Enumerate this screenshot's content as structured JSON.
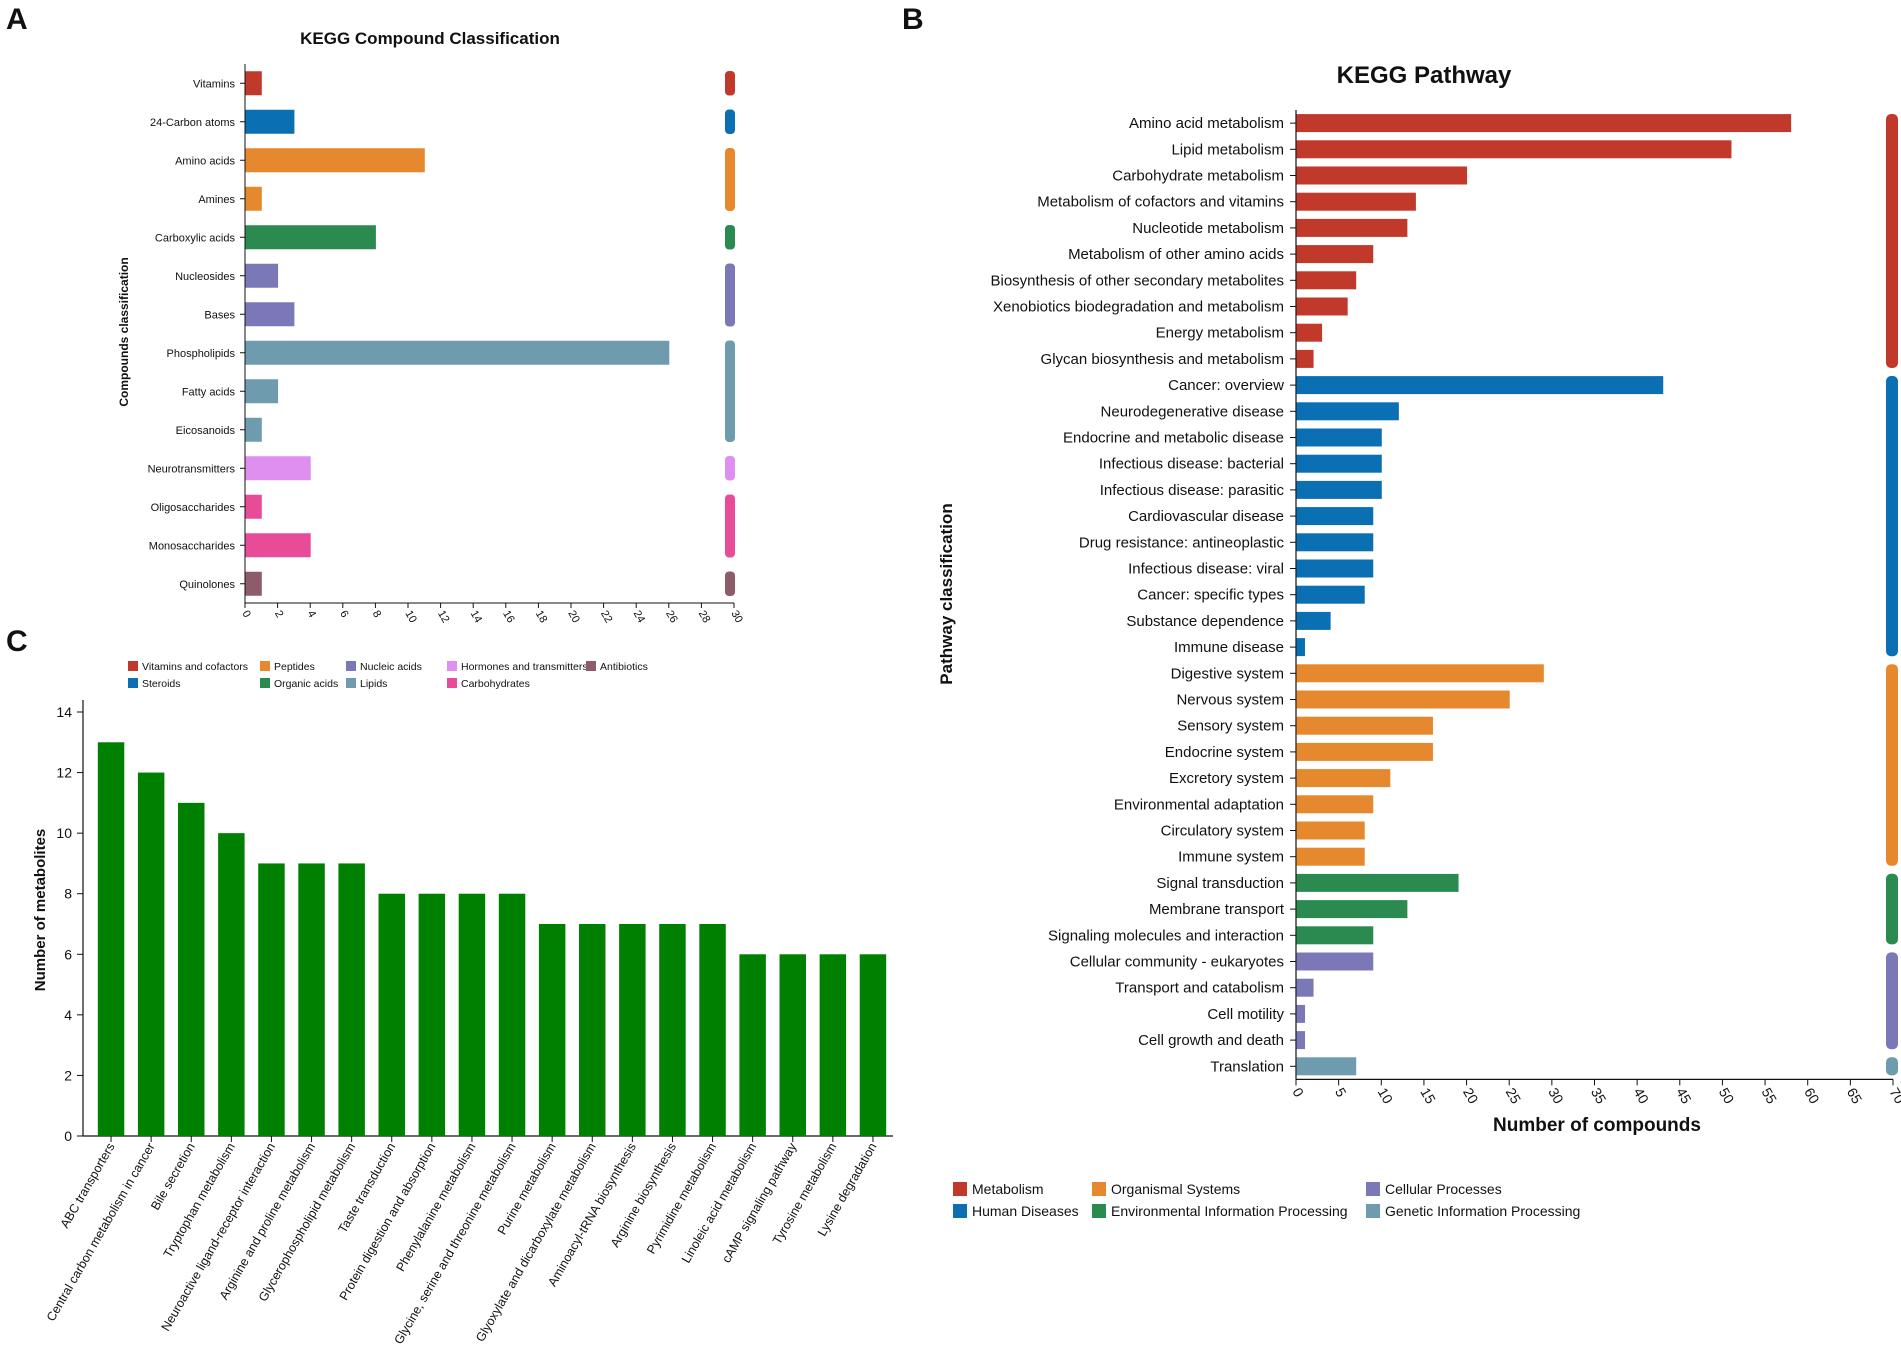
{
  "chart_data": [
    {
      "panel": "A",
      "type": "bar",
      "orientation": "horizontal",
      "title": "KEGG Compound Classification",
      "xlabel": "",
      "ylabel": "Compounds classification",
      "xlim": [
        0,
        30
      ],
      "xticks": [
        0,
        2,
        4,
        6,
        8,
        10,
        12,
        14,
        16,
        18,
        20,
        22,
        24,
        26,
        28,
        30
      ],
      "categories": [
        "Vitamins",
        "24-Carbon atoms",
        "Amino acids",
        "Amines",
        "Carboxylic acids",
        "Nucleosides",
        "Bases",
        "Phospholipids",
        "Fatty acids",
        "Eicosanoids",
        "Neurotransmitters",
        "Oligosaccharides",
        "Monosaccharides",
        "Quinolones"
      ],
      "values": [
        1,
        3,
        11,
        1,
        8,
        2,
        3,
        26,
        2,
        1,
        4,
        1,
        4,
        1
      ],
      "groups": [
        "Vitamins and cofactors",
        "Steroids",
        "Peptides",
        "Peptides",
        "Organic acids",
        "Nucleic acids",
        "Nucleic acids",
        "Lipids",
        "Lipids",
        "Lipids",
        "Hormones and transmitters",
        "Carbohydrates",
        "Carbohydrates",
        "Antibiotics"
      ],
      "grid": false
    },
    {
      "panel": "B",
      "type": "bar",
      "orientation": "horizontal",
      "title": "KEGG Pathway",
      "xlabel": "Number of compounds",
      "ylabel": "Pathway classification",
      "xlim": [
        0,
        70
      ],
      "xticks": [
        0,
        5,
        10,
        15,
        20,
        25,
        30,
        35,
        40,
        45,
        50,
        55,
        60,
        65,
        70
      ],
      "categories": [
        "Amino acid metabolism",
        "Lipid metabolism",
        "Carbohydrate metabolism",
        "Metabolism of cofactors and vitamins",
        "Nucleotide metabolism",
        "Metabolism of other amino acids",
        "Biosynthesis of other secondary metabolites",
        "Xenobiotics biodegradation and metabolism",
        "Energy metabolism",
        "Glycan biosynthesis and metabolism",
        "Cancer: overview",
        "Neurodegenerative disease",
        "Endocrine and metabolic disease",
        "Infectious disease: bacterial",
        "Infectious disease: parasitic",
        "Cardiovascular disease",
        "Drug resistance: antineoplastic",
        "Infectious disease: viral",
        "Cancer: specific types",
        "Substance dependence",
        "Immune disease",
        "Digestive system",
        "Nervous system",
        "Sensory system",
        "Endocrine system",
        "Excretory system",
        "Environmental adaptation",
        "Circulatory system",
        "Immune system",
        "Signal transduction",
        "Membrane transport",
        "Signaling molecules and interaction",
        "Cellular community - eukaryotes",
        "Transport and catabolism",
        "Cell motility",
        "Cell growth and death",
        "Translation"
      ],
      "values": [
        58,
        51,
        20,
        14,
        13,
        9,
        7,
        6,
        3,
        2,
        43,
        12,
        10,
        10,
        10,
        9,
        9,
        9,
        8,
        4,
        1,
        29,
        25,
        16,
        16,
        11,
        9,
        8,
        8,
        19,
        13,
        9,
        9,
        2,
        1,
        1,
        7
      ],
      "groups": [
        "Metabolism",
        "Metabolism",
        "Metabolism",
        "Metabolism",
        "Metabolism",
        "Metabolism",
        "Metabolism",
        "Metabolism",
        "Metabolism",
        "Metabolism",
        "Human Diseases",
        "Human Diseases",
        "Human Diseases",
        "Human Diseases",
        "Human Diseases",
        "Human Diseases",
        "Human Diseases",
        "Human Diseases",
        "Human Diseases",
        "Human Diseases",
        "Human Diseases",
        "Organismal Systems",
        "Organismal Systems",
        "Organismal Systems",
        "Organismal Systems",
        "Organismal Systems",
        "Organismal Systems",
        "Organismal Systems",
        "Organismal Systems",
        "Environmental Information Processing",
        "Environmental Information Processing",
        "Environmental Information Processing",
        "Cellular Processes",
        "Cellular Processes",
        "Cellular Processes",
        "Cellular Processes",
        "Genetic Information Processing"
      ],
      "legend": [
        "Metabolism",
        "Organismal Systems",
        "Cellular Processes",
        "Human Diseases",
        "Environmental Information Processing",
        "Genetic Information Processing"
      ],
      "legend_placement": "bottom",
      "grid": false
    },
    {
      "panel": "C",
      "type": "bar",
      "orientation": "vertical",
      "title": "",
      "xlabel": "",
      "ylabel": "Number of metabolites",
      "ylim": [
        0,
        14
      ],
      "yticks": [
        0,
        2,
        4,
        6,
        8,
        10,
        12,
        14
      ],
      "categories": [
        "ABC transporters",
        "Central carbon metabolism in cancer",
        "Bile secretion",
        "Tryptophan metabolism",
        "Neuroactive ligand-receptor interaction",
        "Arginine and proline metabolism",
        "Glycerophospholipid metabolism",
        "Taste transduction",
        "Protein digestion and absorption",
        "Phenylalanine metabolism",
        "Glycine, serine and threonine metabolism",
        "Purine metabolism",
        "Glyoxylate and dicarboxylate metabolism",
        "Aminoacyl-tRNA biosynthesis",
        "Arginine biosynthesis",
        "Pyrimidine metabolism",
        "Linoleic acid metabolism",
        "cAMP signaling pathway",
        "Tyrosine metabolism",
        "Lysine degradation"
      ],
      "values": [
        13,
        12,
        11,
        10,
        9,
        9,
        9,
        8,
        8,
        8,
        8,
        7,
        7,
        7,
        7,
        7,
        6,
        6,
        6,
        6
      ],
      "bar_color": "#008000",
      "legend": [
        "Vitamins and cofactors",
        "Peptides",
        "Nucleic acids",
        "Hormones and transmitters",
        "Antibiotics",
        "Steroids",
        "Organic acids",
        "Lipids",
        "Carbohydrates"
      ],
      "legend_placement": "top",
      "grid": false
    }
  ],
  "colors": {
    "Vitamins and cofactors": "#c0392b",
    "Steroids": "#0b6fb4",
    "Peptides": "#e6892e",
    "Organic acids": "#2a8a4f",
    "Nucleic acids": "#7b78b8",
    "Lipids": "#6f9bae",
    "Hormones and transmitters": "#df8ff0",
    "Carbohydrates": "#e84c98",
    "Antibiotics": "#8e5b6a",
    "Metabolism": "#c0392b",
    "Human Diseases": "#0b6fb4",
    "Organismal Systems": "#e6892e",
    "Environmental Information Processing": "#2a8a4f",
    "Cellular Processes": "#7b78b8",
    "Genetic Information Processing": "#6f9bae"
  },
  "panel_labels": [
    "A",
    "B",
    "C"
  ]
}
